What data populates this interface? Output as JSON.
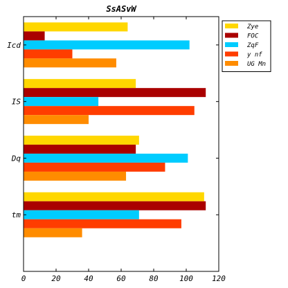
{
  "chart_data": {
    "type": "bar",
    "orientation": "horizontal",
    "title": "SsASvW",
    "categories": [
      "Icd",
      "IS",
      "Dq",
      "tm"
    ],
    "series": [
      {
        "name": "Zye",
        "color": "#FFD700",
        "values": [
          64,
          69,
          71,
          111
        ]
      },
      {
        "name": "FOC",
        "color": "#AA0000",
        "values": [
          13,
          112,
          69,
          112
        ]
      },
      {
        "name": "ZqF",
        "color": "#00CCFF",
        "values": [
          102,
          46,
          101,
          71
        ]
      },
      {
        "name": "y nf",
        "color": "#FF3D00",
        "values": [
          30,
          105,
          87,
          97
        ]
      },
      {
        "name": "UG Mn",
        "color": "#FF8C00",
        "values": [
          57,
          40,
          63,
          36
        ]
      }
    ],
    "xlim": [
      0,
      120
    ],
    "xticks": [
      0,
      20,
      40,
      60,
      80,
      100,
      120
    ],
    "xlabel": "",
    "ylabel": "",
    "grid": false,
    "legend_position": "top-right"
  }
}
